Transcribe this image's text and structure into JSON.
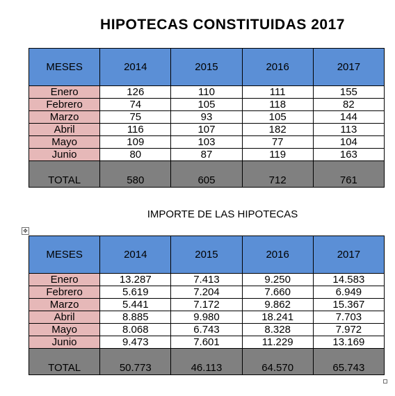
{
  "title": "HIPOTECAS  CONSTITUIDAS  2017",
  "subtitle": "IMPORTE DE  LAS HIPOTECAS",
  "table1": {
    "headers": [
      "MESES",
      "2014",
      "2015",
      "2016",
      "2017"
    ],
    "rows": [
      [
        "Enero",
        "126",
        "110",
        "111",
        "155"
      ],
      [
        "Febrero",
        "74",
        "105",
        "118",
        "82"
      ],
      [
        "Marzo",
        "75",
        "93",
        "105",
        "144"
      ],
      [
        "Abril",
        "116",
        "107",
        "182",
        "113"
      ],
      [
        "Mayo",
        "109",
        "103",
        "77",
        "104"
      ],
      [
        "Junio",
        "80",
        "87",
        "119",
        "163"
      ]
    ],
    "total": [
      "TOTAL",
      "580",
      "605",
      "712",
      "761"
    ]
  },
  "table2": {
    "headers": [
      "MESES",
      "2014",
      "2015",
      "2016",
      "2017"
    ],
    "rows": [
      [
        "Enero",
        "13.287",
        "7.413",
        "9.250",
        "14.583"
      ],
      [
        "Febrero",
        "5.619",
        "7.204",
        "7.660",
        "6.949"
      ],
      [
        "Marzo",
        "5.441",
        "7.172",
        "9.862",
        "15.367"
      ],
      [
        "Abril",
        "8.885",
        "9.980",
        "18.241",
        "7.703"
      ],
      [
        "Mayo",
        "8.068",
        "6.743",
        "8.328",
        "7.972"
      ],
      [
        "Junio",
        "9.473",
        "7.601",
        "11.229",
        "13.169"
      ]
    ],
    "total": [
      "TOTAL",
      "50.773",
      "46.113",
      "64.570",
      "65.743"
    ]
  },
  "colors": {
    "header": "#5b8fd6",
    "month_cell": "#e6b8b8",
    "total_row": "#808080"
  },
  "icons": {
    "table_handle": "move-handle-icon",
    "resize": "resize-handle-icon"
  }
}
